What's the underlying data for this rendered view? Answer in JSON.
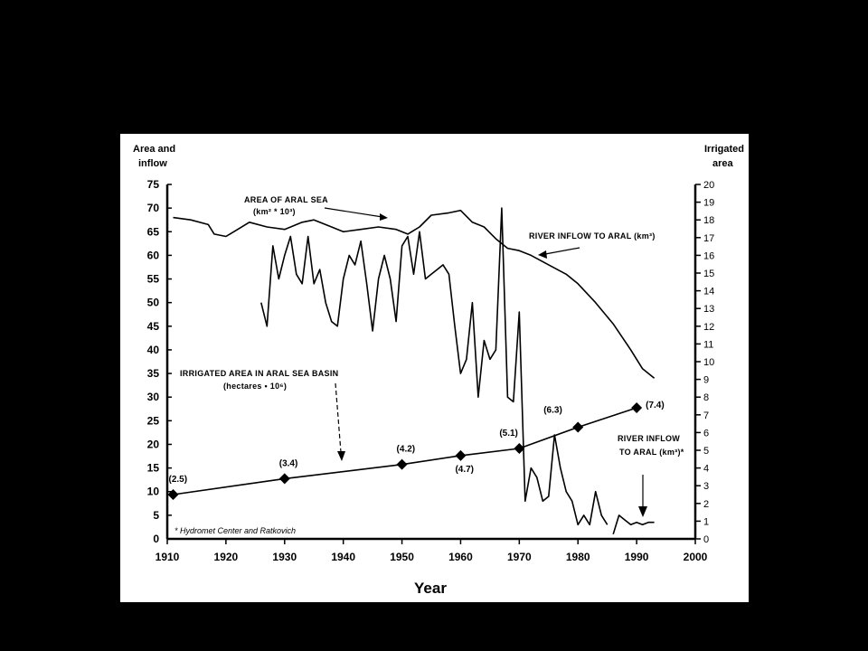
{
  "chart_data": {
    "type": "line",
    "xlabel": "Year",
    "ylabel_left": [
      "Area and",
      "inflow"
    ],
    "ylabel_right": [
      "Irrigated",
      "area"
    ],
    "xlim": [
      1910,
      2000
    ],
    "ylim_left": [
      0,
      75
    ],
    "ylim_right": [
      0,
      20
    ],
    "x_ticks": [
      1910,
      1920,
      1930,
      1940,
      1950,
      1960,
      1970,
      1980,
      1990,
      2000
    ],
    "y_ticks_left": [
      0,
      5,
      10,
      15,
      20,
      25,
      30,
      35,
      40,
      45,
      50,
      55,
      60,
      65,
      70,
      75
    ],
    "y_ticks_right": [
      0,
      1,
      2,
      3,
      4,
      5,
      6,
      7,
      8,
      9,
      10,
      11,
      12,
      13,
      14,
      15,
      16,
      17,
      18,
      19,
      20
    ],
    "grid": false,
    "series": [
      {
        "name": "AREA OF ARAL SEA",
        "axis": "left",
        "x": [
          1911,
          1914,
          1917,
          1918,
          1920,
          1922,
          1924,
          1927,
          1930,
          1933,
          1935,
          1938,
          1940,
          1943,
          1946,
          1949,
          1951,
          1953,
          1955,
          1958,
          1960,
          1962,
          1964,
          1966,
          1968,
          1970,
          1972,
          1975,
          1978,
          1980,
          1983,
          1986,
          1989,
          1991,
          1993
        ],
        "y": [
          68,
          67.5,
          66.5,
          64.5,
          64,
          65.5,
          67,
          66,
          65.5,
          67,
          67.5,
          66,
          65,
          65.5,
          66,
          65.5,
          64.5,
          66,
          68.5,
          69,
          69.5,
          67,
          66,
          63.5,
          61.5,
          61,
          60,
          58,
          56,
          54,
          50,
          45.5,
          40,
          36,
          34
        ]
      },
      {
        "name": "RIVER INFLOW TO ARAL",
        "axis": "left",
        "x": [
          1926,
          1927,
          1928,
          1929,
          1930,
          1931,
          1932,
          1933,
          1934,
          1935,
          1936,
          1937,
          1938,
          1939,
          1940,
          1941,
          1942,
          1943,
          1944,
          1945,
          1946,
          1947,
          1948,
          1949,
          1950,
          1951,
          1952,
          1953,
          1954,
          1955,
          1956,
          1957,
          1958,
          1959,
          1960,
          1961,
          1962,
          1963,
          1964,
          1965,
          1966,
          1967,
          1968,
          1969,
          1970,
          1971,
          1972,
          1973,
          1974,
          1975,
          1976,
          1977,
          1978,
          1979,
          1980,
          1981,
          1982,
          1983,
          1984,
          1985
        ],
        "y": [
          50,
          45,
          62,
          55,
          60,
          64,
          56,
          54,
          64,
          54,
          57,
          50,
          46,
          45,
          55,
          60,
          58,
          63,
          54,
          44,
          55,
          60,
          55,
          46,
          62,
          64,
          56,
          65,
          55,
          56,
          57,
          58,
          56,
          45,
          35,
          38,
          50,
          30,
          42,
          38,
          40,
          70,
          30,
          29,
          48,
          8,
          15,
          13,
          8,
          9,
          22,
          15,
          10,
          8,
          3,
          5,
          3,
          10,
          5,
          3
        ]
      },
      {
        "name": "RIVER INFLOW TO ARAL (km3)*",
        "axis": "left",
        "x": [
          1986,
          1987,
          1988,
          1989,
          1990,
          1991,
          1992,
          1993
        ],
        "y": [
          1,
          5,
          4,
          3,
          3.5,
          3,
          3.5,
          3.5
        ]
      },
      {
        "name": "IRRIGATED AREA IN ARAL SEA BASIN",
        "axis": "right",
        "markers": "diamond",
        "x": [
          1911,
          1930,
          1950,
          1960,
          1970,
          1980,
          1990
        ],
        "y": [
          2.5,
          3.4,
          4.2,
          4.7,
          5.1,
          6.3,
          7.4
        ],
        "labels": [
          "(2.5)",
          "(3.4)",
          "(4.2)",
          "(4.7)",
          "(5.1)",
          "(6.3)",
          "(7.4)"
        ]
      }
    ],
    "annotations": {
      "area_label": "AREA OF ARAL SEA",
      "area_units": "(km² * 10³)",
      "inflow_label": "RIVER INFLOW TO ARAL (km³)",
      "irrigated_label": "IRRIGATED AREA IN ARAL SEA BASIN",
      "irrigated_units": "(hectares • 10⁶)",
      "inflow2_label_1": "RIVER INFLOW",
      "inflow2_label_2": "TO ARAL (km³)*",
      "source_note": "* Hydromet Center and Ratkovich"
    }
  }
}
